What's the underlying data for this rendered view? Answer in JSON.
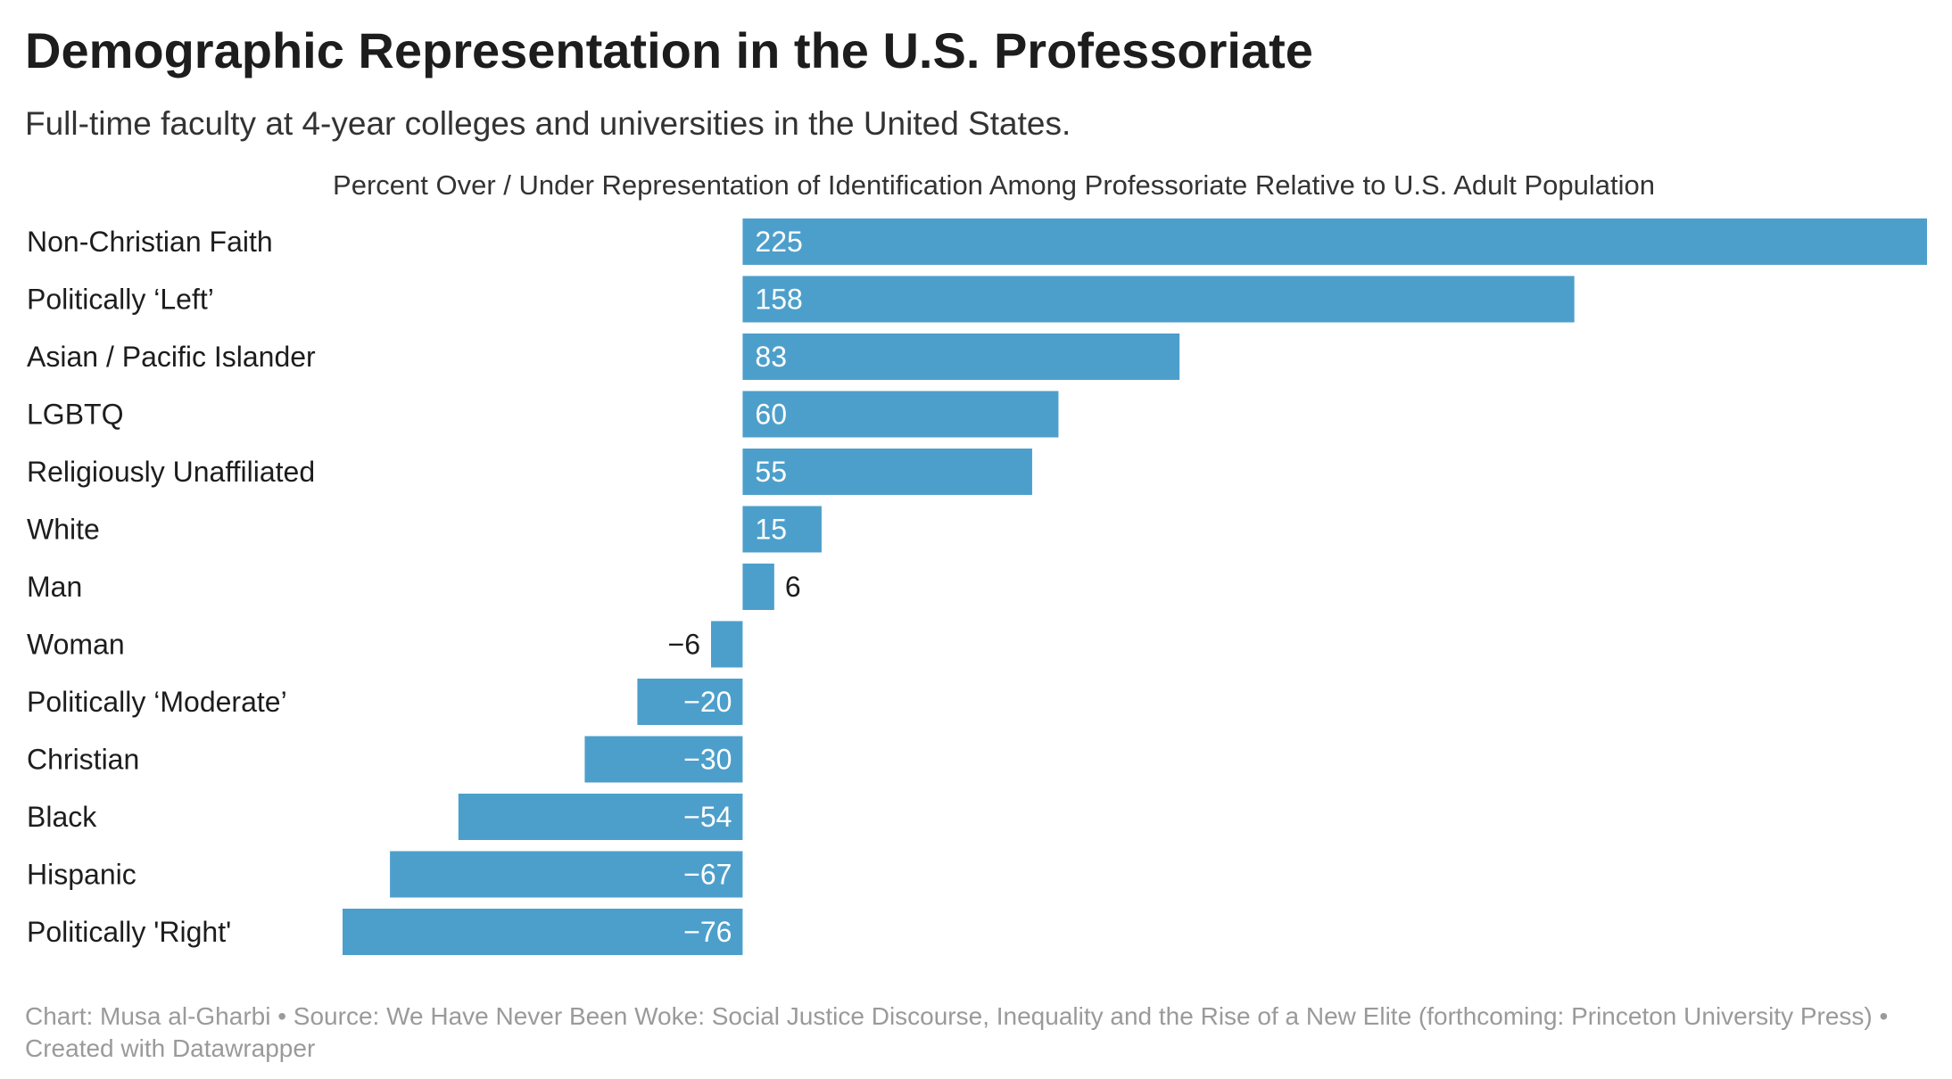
{
  "header": {
    "title": "Demographic Representation in the U.S. Professoriate",
    "subtitle": "Full-time faculty at 4-year colleges and universities in the United States."
  },
  "chart_data": {
    "type": "bar",
    "orientation": "horizontal",
    "title": "Demographic Representation in the U.S. Professoriate",
    "subtitle": "Full-time faculty at 4-year colleges and universities in the United States.",
    "xlabel": "Percent Over / Under Representation of Identification Among Professoriate Relative to U.S. Adult Population",
    "ylabel": "",
    "categories": [
      "Non-Christian Faith",
      "Politically ‘Left’",
      "Asian / Pacific Islander",
      "LGBTQ",
      "Religiously Unaffiliated",
      "White",
      "Man",
      "Woman",
      "Politically ‘Moderate’",
      "Christian",
      "Black",
      "Hispanic",
      "Politically 'Right'"
    ],
    "values": [
      225,
      158,
      83,
      60,
      55,
      15,
      6,
      -6,
      -20,
      -30,
      -54,
      -67,
      -76
    ],
    "value_labels": [
      "225",
      "158",
      "83",
      "60",
      "55",
      "15",
      "6",
      "−6",
      "−20",
      "−30",
      "−54",
      "−67",
      "−76"
    ],
    "xlim": [
      -76,
      225
    ],
    "grid": false,
    "legend": "none",
    "bar_color": "#4d9fcb"
  },
  "footer": {
    "credit": "Chart: Musa al-Gharbi • Source: We Have Never Been Woke: Social Justice Discourse, Inequality and the Rise of a New Elite (forthcoming: Princeton University Press) • Created with Datawrapper"
  }
}
